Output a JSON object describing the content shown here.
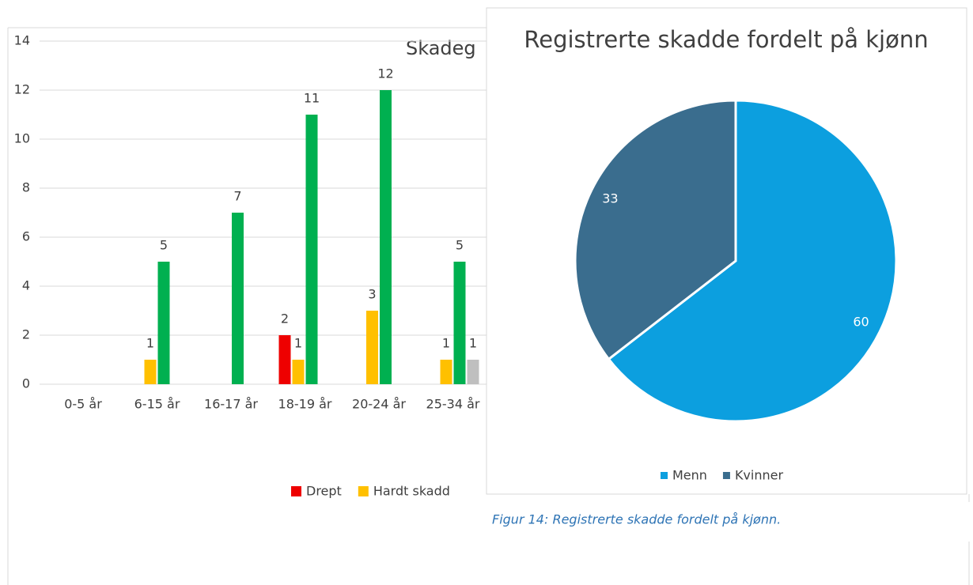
{
  "chart_data": [
    {
      "type": "bar",
      "title": "Skadeg",
      "categories": [
        "0-5 år",
        "6-15 år",
        "16-17 år",
        "18-19 år",
        "20-24 år",
        "25-34 år"
      ],
      "series": [
        {
          "name": "Drept",
          "color": "#ee0000",
          "values": [
            null,
            null,
            null,
            2,
            null,
            null
          ]
        },
        {
          "name": "Hardt skadd",
          "color": "#ffc000",
          "values": [
            null,
            1,
            null,
            1,
            3,
            1
          ]
        },
        {
          "color": "#00b050",
          "values": [
            null,
            5,
            7,
            11,
            12,
            5
          ]
        },
        {
          "color": "#bfbfbf",
          "values": [
            null,
            null,
            null,
            null,
            null,
            1
          ]
        }
      ],
      "ylim": [
        0,
        14
      ],
      "yticks": [
        0,
        2,
        4,
        6,
        8,
        10,
        12,
        14
      ],
      "grid": true
    },
    {
      "type": "pie",
      "title": "Registrerte skadde fordelt på kjønn",
      "categories": [
        "Menn",
        "Kvinner"
      ],
      "values": [
        60,
        33
      ],
      "colors": [
        "#0c9fdf",
        "#3a6d8e"
      ]
    }
  ],
  "caption": "Figur 14: Registrerte skadde fordelt på kjønn."
}
